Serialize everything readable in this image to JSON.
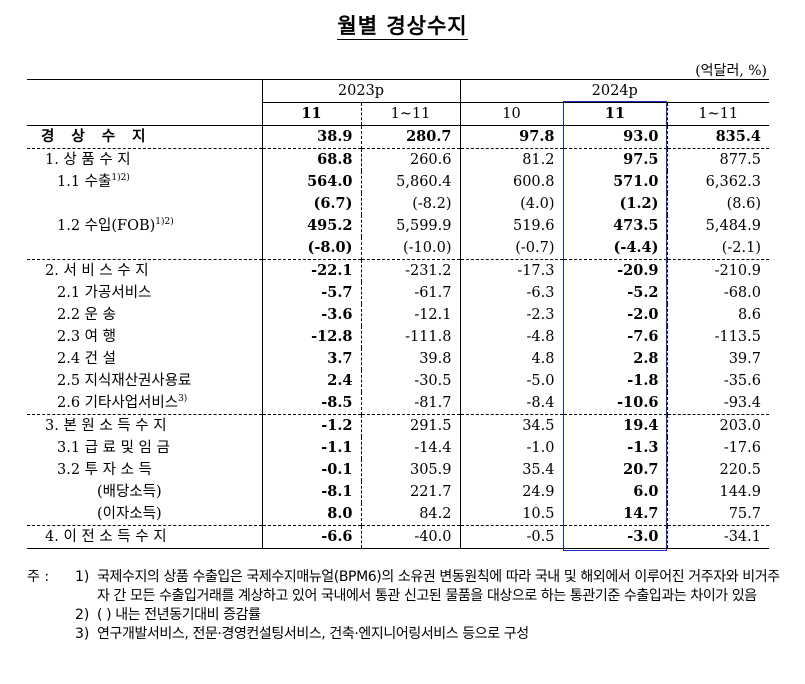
{
  "title": "월별 경상수지",
  "unit": "(억달러, %)",
  "header": {
    "y2023": "2023p",
    "y2024": "2024p",
    "cols": [
      "11",
      "1~11",
      "10",
      "11",
      "1~11"
    ]
  },
  "rows": [
    {
      "label": "경 상 수 지",
      "sup": "",
      "bold": true,
      "v": [
        "38.9",
        "280.7",
        "97.8",
        "93.0",
        "835.4"
      ]
    },
    {
      "label": "1. 상 품 수 지",
      "sup": "",
      "bold": false,
      "v": [
        "68.8",
        "260.6",
        "81.2",
        "97.5",
        "877.5"
      ]
    },
    {
      "label": "1.1 수출",
      "sup": "1)2)",
      "bold": false,
      "v": [
        "564.0",
        "5,860.4",
        "600.8",
        "571.0",
        "6,362.3"
      ]
    },
    {
      "label": "",
      "sup": "",
      "bold": false,
      "v": [
        "(6.7)",
        "(-8.2)",
        "(4.0)",
        "(1.2)",
        "(8.6)"
      ]
    },
    {
      "label": "1.2 수입(FOB)",
      "sup": "1)2)",
      "bold": false,
      "v": [
        "495.2",
        "5,599.9",
        "519.6",
        "473.5",
        "5,484.9"
      ]
    },
    {
      "label": "",
      "sup": "",
      "bold": false,
      "v": [
        "(-8.0)",
        "(-10.0)",
        "(-0.7)",
        "(-4.4)",
        "(-2.1)"
      ]
    },
    {
      "label": "2. 서 비 스 수 지",
      "sup": "",
      "bold": false,
      "v": [
        "-22.1",
        "-231.2",
        "-17.3",
        "-20.9",
        "-210.9"
      ]
    },
    {
      "label": "2.1 가공서비스",
      "sup": "",
      "bold": false,
      "v": [
        "-5.7",
        "-61.7",
        "-6.3",
        "-5.2",
        "-68.0"
      ]
    },
    {
      "label": "2.2 운      송",
      "sup": "",
      "bold": false,
      "v": [
        "-3.6",
        "-12.1",
        "-2.3",
        "-2.0",
        "8.6"
      ]
    },
    {
      "label": "2.3 여      행",
      "sup": "",
      "bold": false,
      "v": [
        "-12.8",
        "-111.8",
        "-4.8",
        "-7.6",
        "-113.5"
      ]
    },
    {
      "label": "2.4 건      설",
      "sup": "",
      "bold": false,
      "v": [
        "3.7",
        "39.8",
        "4.8",
        "2.8",
        "39.7"
      ]
    },
    {
      "label": "2.5 지식재산권사용료",
      "sup": "",
      "bold": false,
      "v": [
        "2.4",
        "-30.5",
        "-5.0",
        "-1.8",
        "-35.6"
      ]
    },
    {
      "label": "2.6 기타사업서비스",
      "sup": "3)",
      "bold": false,
      "v": [
        "-8.5",
        "-81.7",
        "-8.4",
        "-10.6",
        "-93.4"
      ]
    },
    {
      "label": "3. 본 원 소 득 수 지",
      "sup": "",
      "bold": false,
      "v": [
        "-1.2",
        "291.5",
        "34.5",
        "19.4",
        "203.0"
      ]
    },
    {
      "label": "3.1 급 료 및 임 금",
      "sup": "",
      "bold": false,
      "v": [
        "-1.1",
        "-14.4",
        "-1.0",
        "-1.3",
        "-17.6"
      ]
    },
    {
      "label": "3.2 투   자   소   득",
      "sup": "",
      "bold": false,
      "v": [
        "-0.1",
        "305.9",
        "35.4",
        "20.7",
        "220.5"
      ]
    },
    {
      "label": "(배당소득)",
      "sup": "",
      "bold": false,
      "v": [
        "-8.1",
        "221.7",
        "24.9",
        "6.0",
        "144.9"
      ]
    },
    {
      "label": "(이자소득)",
      "sup": "",
      "bold": false,
      "v": [
        "8.0",
        "84.2",
        "10.5",
        "14.7",
        "75.7"
      ]
    },
    {
      "label": "4. 이 전 소 득 수 지",
      "sup": "",
      "bold": false,
      "v": [
        "-6.6",
        "-40.0",
        "-0.5",
        "-3.0",
        "-34.1"
      ]
    }
  ],
  "notes": {
    "mark": "주 :",
    "items": [
      {
        "num": "1)",
        "text": "국제수지의 상품 수출입은 국제수지매뉴얼(BPM6)의 소유권 변동원칙에 따라 국내 및 해외에서 이루어진 거주자와 비거주자 간 모든 수출입거래를 계상하고 있어 국내에서 통관 신고된 물품을 대상으로 하는 통관기준 수출입과는 차이가 있음"
      },
      {
        "num": "2)",
        "text": "(  ) 내는 전년동기대비 증감률"
      },
      {
        "num": "3)",
        "text": "연구개발서비스, 전문·경영컨설팅서비스, 건축·엔지니어링서비스 등으로 구성"
      }
    ]
  }
}
